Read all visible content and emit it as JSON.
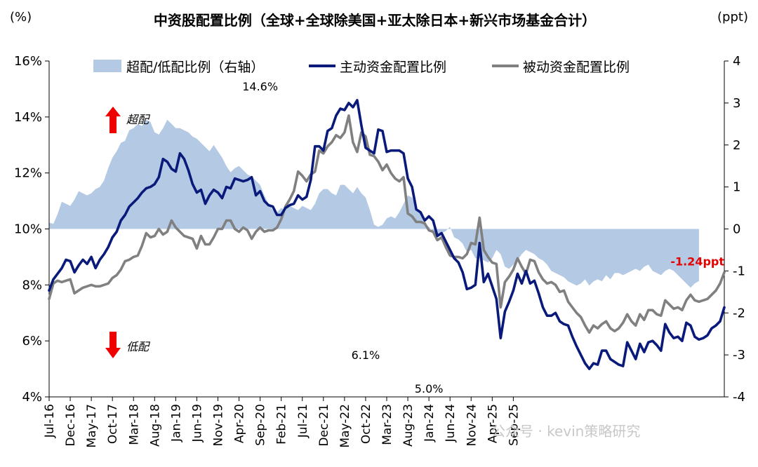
{
  "chart_data": {
    "type": "line",
    "title": "中资股配置比例（全球+全球除美国+亚太除日本+新兴市场基金合计）",
    "left_unit": "(%)",
    "right_unit": "(ppt)",
    "y_left": {
      "min": 4,
      "max": 16,
      "ticks": [
        4,
        6,
        8,
        10,
        12,
        14,
        16
      ],
      "tick_labels": [
        "4%",
        "6%",
        "8%",
        "10%",
        "12%",
        "14%",
        "16%"
      ]
    },
    "y_right": {
      "min": -4,
      "max": 4,
      "ticks": [
        -4,
        -3,
        -2,
        -1,
        0,
        1,
        2,
        3,
        4
      ],
      "tick_labels": [
        "-4",
        "-3",
        "-2",
        "-1",
        "0",
        "1",
        "2",
        "3",
        "4"
      ]
    },
    "x_start": "Jul-16",
    "x_end": "Sep-25",
    "x_tick_labels": [
      "Jul-16",
      "Dec-16",
      "May-17",
      "Oct-17",
      "Mar-18",
      "Aug-18",
      "Jan-19",
      "Jun-19",
      "Nov-19",
      "Apr-20",
      "Sep-20",
      "Feb-21",
      "Jul-21",
      "Dec-21",
      "May-22",
      "Oct-22",
      "Mar-23",
      "Aug-23",
      "Jan-24",
      "Jun-24",
      "Nov-24",
      "Apr-25",
      "Sep-25"
    ],
    "legend": {
      "placement": "top",
      "items": [
        {
          "label": "超配/低配比例（右轴）",
          "color": "#b4c9e4",
          "kind": "area"
        },
        {
          "label": "主动资金配置比例",
          "color": "#0a1a7a",
          "kind": "line"
        },
        {
          "label": "被动资金配置比例",
          "color": "#808080",
          "kind": "line"
        }
      ]
    },
    "series": [
      {
        "name": "超配/低配比例（右轴）",
        "axis": "right",
        "type": "area",
        "color": "#b4c9e4",
        "values": [
          0.15,
          0.12,
          0.35,
          0.65,
          0.6,
          0.55,
          0.7,
          0.9,
          0.85,
          0.8,
          0.85,
          0.95,
          1.0,
          1.15,
          1.45,
          1.7,
          1.85,
          2.05,
          2.1,
          2.35,
          2.4,
          2.5,
          2.45,
          2.6,
          2.55,
          2.3,
          2.25,
          2.4,
          2.6,
          2.5,
          2.4,
          2.4,
          2.35,
          2.3,
          2.2,
          2.15,
          2.05,
          1.95,
          1.85,
          2.0,
          1.85,
          1.7,
          1.5,
          1.35,
          1.45,
          1.5,
          1.4,
          1.3,
          1.25,
          1.15,
          1.05,
          0.8,
          0.6,
          0.45,
          0.4,
          0.5,
          0.45,
          0.55,
          0.5,
          0.45,
          0.55,
          0.5,
          0.45,
          0.6,
          0.85,
          0.95,
          0.95,
          0.85,
          0.8,
          1.05,
          1.05,
          0.95,
          0.85,
          1.0,
          0.85,
          0.75,
          0.45,
          0.1,
          0.05,
          0.1,
          0.25,
          0.3,
          0.25,
          0.4,
          0.6,
          0.8,
          0.75,
          0.5,
          0.35,
          0.1,
          0.05,
          -0.05,
          -0.15,
          -0.1,
          -0.05,
          0.05,
          -0.2,
          -0.25,
          -0.35,
          -0.55,
          -0.5,
          -0.7,
          -0.7,
          -0.75,
          -0.8,
          -0.7,
          -0.5,
          -0.6,
          -0.9,
          -0.95,
          -0.85,
          -0.75,
          -0.6,
          -0.5,
          -0.55,
          -0.6,
          -0.7,
          -0.75,
          -0.85,
          -1.0,
          -1.05,
          -1.1,
          -1.15,
          -1.25,
          -1.3,
          -1.35,
          -1.3,
          -1.2,
          -1.35,
          -1.25,
          -1.2,
          -1.25,
          -1.1,
          -1.2,
          -1.05,
          -1.05,
          -1.1,
          -1.05,
          -1.0,
          -0.95,
          -1.0,
          -0.9,
          -0.85,
          -1.0,
          -1.05,
          -1.1,
          -1.0,
          -0.95,
          -1.0,
          -1.1,
          -1.2,
          -1.3,
          -1.4,
          -1.3,
          -1.24
        ]
      },
      {
        "name": "主动资金配置比例",
        "axis": "left",
        "type": "line",
        "color": "#0a1a7a",
        "values": [
          7.8,
          8.2,
          8.4,
          8.6,
          8.9,
          8.85,
          8.45,
          8.7,
          8.9,
          8.75,
          9.0,
          8.6,
          8.9,
          9.1,
          9.35,
          9.7,
          9.9,
          10.3,
          10.5,
          10.8,
          10.95,
          11.1,
          11.3,
          11.45,
          11.5,
          11.6,
          11.85,
          12.5,
          12.4,
          12.15,
          12.05,
          12.7,
          12.5,
          12.1,
          11.6,
          11.3,
          11.4,
          10.9,
          11.2,
          11.4,
          11.3,
          11.1,
          11.5,
          11.45,
          11.8,
          11.75,
          11.7,
          11.75,
          11.85,
          11.2,
          11.35,
          11.0,
          10.85,
          10.8,
          10.5,
          10.5,
          10.75,
          10.85,
          10.9,
          11.2,
          11.05,
          11.15,
          11.75,
          12.95,
          12.95,
          12.8,
          13.5,
          13.6,
          14.05,
          14.3,
          14.25,
          14.5,
          14.35,
          14.6,
          13.7,
          12.9,
          12.8,
          12.7,
          13.55,
          13.5,
          12.75,
          12.8,
          12.8,
          12.8,
          12.7,
          11.8,
          11.5,
          10.7,
          10.6,
          10.3,
          10.45,
          10.3,
          9.75,
          9.85,
          9.55,
          9.25,
          8.95,
          8.8,
          8.45,
          7.85,
          7.9,
          8.0,
          9.5,
          8.1,
          8.4,
          7.95,
          7.5,
          6.1,
          7.05,
          7.4,
          7.8,
          8.4,
          8.05,
          8.5,
          8.05,
          8.15,
          7.7,
          7.2,
          6.9,
          6.9,
          7.0,
          6.7,
          6.6,
          6.55,
          6.15,
          5.8,
          5.5,
          5.2,
          5.0,
          5.2,
          5.15,
          5.65,
          5.65,
          5.35,
          5.25,
          5.15,
          5.1,
          5.95,
          5.65,
          5.35,
          5.9,
          5.6,
          5.95,
          6.0,
          5.85,
          5.65,
          6.6,
          6.3,
          6.1,
          6.15,
          6.0,
          6.65,
          6.55,
          6.15,
          6.05,
          6.1,
          6.2,
          6.45,
          6.55,
          6.7,
          7.2
        ]
      },
      {
        "name": "被动资金配置比例",
        "axis": "left",
        "type": "line",
        "color": "#808080",
        "values": [
          7.5,
          8.05,
          8.15,
          8.1,
          8.15,
          8.2,
          7.7,
          7.8,
          7.9,
          7.95,
          8.0,
          7.95,
          7.95,
          8.0,
          8.05,
          8.25,
          8.35,
          8.55,
          8.85,
          8.9,
          9.0,
          9.05,
          9.4,
          9.85,
          9.7,
          9.75,
          10.0,
          9.8,
          9.9,
          10.3,
          10.05,
          9.9,
          9.75,
          9.7,
          9.65,
          9.3,
          9.75,
          9.45,
          9.45,
          9.7,
          10.0,
          10.0,
          10.3,
          10.3,
          10.0,
          9.9,
          10.05,
          9.95,
          9.65,
          9.9,
          10.05,
          9.9,
          9.95,
          9.95,
          10.05,
          10.35,
          10.8,
          11.05,
          11.35,
          12.05,
          11.9,
          11.7,
          11.95,
          12.05,
          12.8,
          12.7,
          12.95,
          13.1,
          13.35,
          13.25,
          13.45,
          14.05,
          13.1,
          12.75,
          13.45,
          13.3,
          12.65,
          12.6,
          12.4,
          12.1,
          12.3,
          12.0,
          11.8,
          11.7,
          11.85,
          10.55,
          10.45,
          10.25,
          10.25,
          10.2,
          9.95,
          9.9,
          9.6,
          9.7,
          9.35,
          9.05,
          9.0,
          9.0,
          8.95,
          9.1,
          9.5,
          9.45,
          10.4,
          9.25,
          9.0,
          8.8,
          8.75,
          7.2,
          8.1,
          8.3,
          8.55,
          8.95,
          8.65,
          8.4,
          8.9,
          8.85,
          8.45,
          8.2,
          8.05,
          8.1,
          8.0,
          7.75,
          7.8,
          7.4,
          7.2,
          7.0,
          6.85,
          6.55,
          6.3,
          6.55,
          6.45,
          6.6,
          6.7,
          6.45,
          6.35,
          6.45,
          6.65,
          6.95,
          6.7,
          6.55,
          6.95,
          6.75,
          7.1,
          7.1,
          6.95,
          6.9,
          7.45,
          7.3,
          7.15,
          7.2,
          7.1,
          7.45,
          7.65,
          7.45,
          7.4,
          7.45,
          7.5,
          7.65,
          7.8,
          8.05,
          8.45
        ]
      }
    ],
    "annotations": [
      {
        "text": "14.6%",
        "series": "主动资金配置比例",
        "x": "Sep-20",
        "y": 14.6
      },
      {
        "text": "6.1%",
        "series": "主动资金配置比例",
        "x": "Oct-22",
        "y": 6.1
      },
      {
        "text": "5.0%",
        "series": "主动资金配置比例",
        "x": "Jan-24",
        "y": 5.0
      },
      {
        "text": "-1.24ppt",
        "series": "超配/低配比例（右轴）",
        "x": "Sep-25",
        "y": -1.24,
        "color": "#e60000"
      }
    ],
    "side_labels": {
      "over": "超配",
      "under": "低配"
    },
    "watermark": "公众号 · kevin策略研究"
  }
}
